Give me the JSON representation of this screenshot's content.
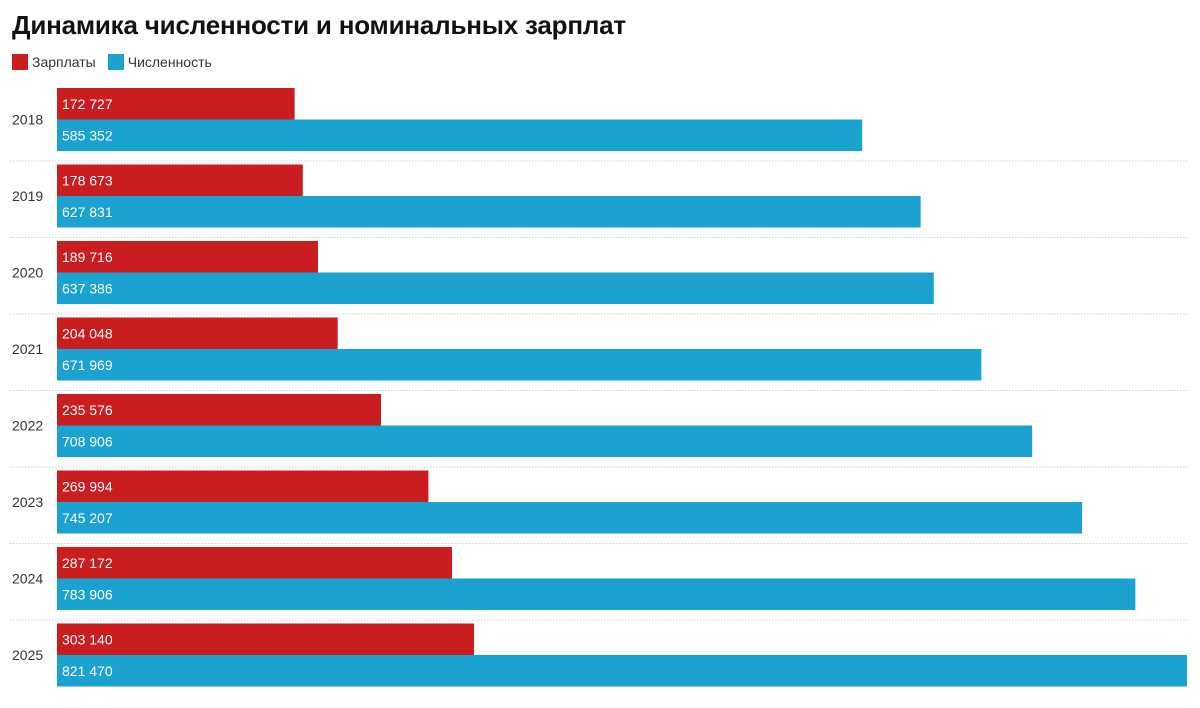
{
  "chart_data": {
    "type": "bar",
    "orientation": "horizontal",
    "title": "Динамика численности и номинальных зарплат",
    "categories": [
      "2018",
      "2019",
      "2020",
      "2021",
      "2022",
      "2023",
      "2024",
      "2025"
    ],
    "series": [
      {
        "name": "Зарплаты",
        "color": "#c91d1f",
        "values": [
          172727,
          178673,
          189716,
          204048,
          235576,
          269994,
          287172,
          303140
        ],
        "labels": [
          "172 727",
          "178 673",
          "189 716",
          "204 048",
          "235 576",
          "269 994",
          "287 172",
          "303 140"
        ]
      },
      {
        "name": "Численность",
        "color": "#1ba2d0",
        "values": [
          585352,
          627831,
          637386,
          671969,
          708906,
          745207,
          783906,
          821470
        ],
        "labels": [
          "585 352",
          "627 831",
          "637 386",
          "671 969",
          "708 906",
          "745 207",
          "783 906",
          "821 470"
        ]
      }
    ],
    "xlim": [
      0,
      821470
    ],
    "grid": false,
    "legend_position": "top-left"
  }
}
